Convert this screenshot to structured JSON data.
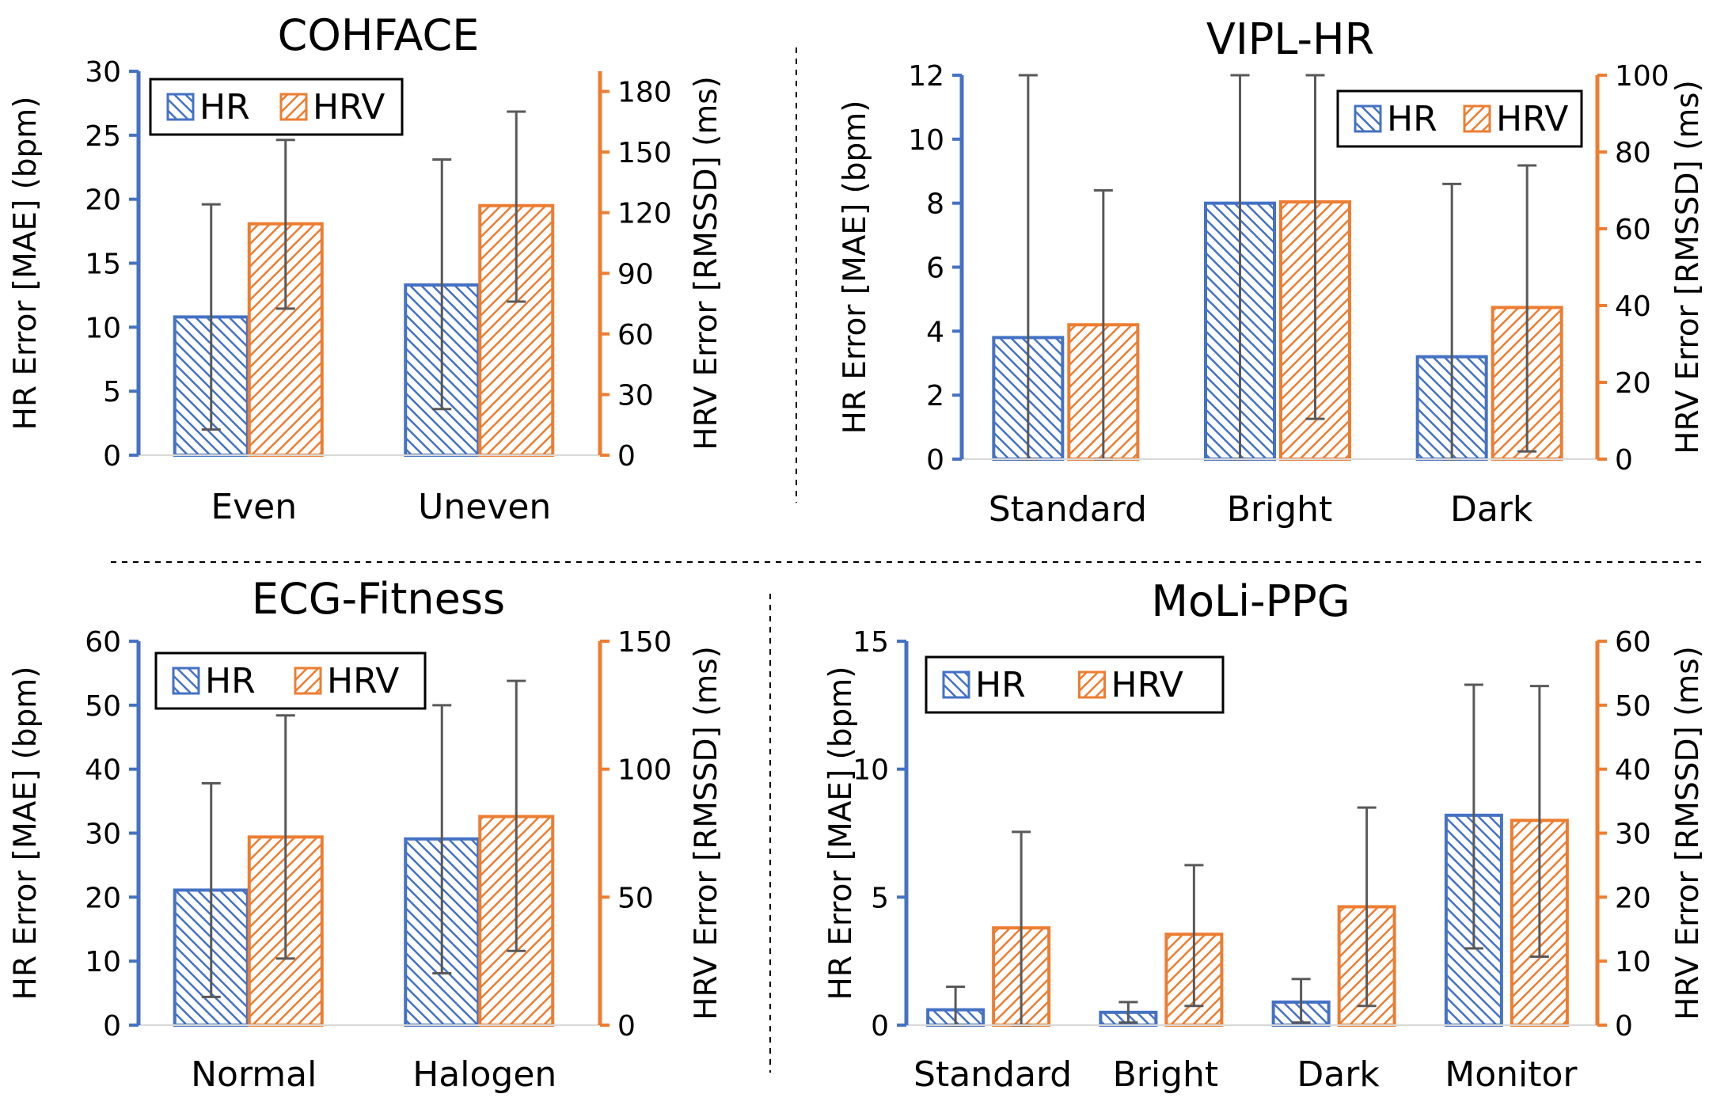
{
  "colors": {
    "hr": "#4472C4",
    "hrv": "#ED7D31",
    "whisker": "#595959",
    "divider": "#000000"
  },
  "legend": {
    "hr": "HR",
    "hrv": "HRV"
  },
  "chart_data": [
    {
      "type": "bar",
      "title": "COHFACE",
      "categories": [
        "Even",
        "Uneven"
      ],
      "ylabel": "HR Error [MAE] (bpm)",
      "y2label": "HRV Error [RMSSD] (ms)",
      "ylim": [
        0,
        30
      ],
      "yticks": [
        0,
        5,
        10,
        15,
        20,
        25,
        30
      ],
      "y2lim": [
        0,
        190
      ],
      "y2ticks": [
        0,
        30,
        60,
        90,
        120,
        150,
        180
      ],
      "legend_position": "top-left",
      "series": [
        {
          "name": "HR",
          "axis": "left",
          "values": [
            10.8,
            13.3
          ],
          "err_low": [
            2.0,
            3.6
          ],
          "err_high": [
            19.6,
            23.1
          ]
        },
        {
          "name": "HRV",
          "axis": "right",
          "values": [
            114.5,
            123.5
          ],
          "err_low": [
            72.5,
            76.0
          ],
          "err_high": [
            156.0,
            170.0
          ]
        }
      ]
    },
    {
      "type": "bar",
      "title": "VIPL-HR",
      "categories": [
        "Standard",
        "Bright",
        "Dark"
      ],
      "ylabel": "HR Error [MAE] (bpm)",
      "y2label": "HRV Error [RMSSD] (ms)",
      "ylim": [
        0,
        12
      ],
      "yticks": [
        0,
        2,
        4,
        6,
        8,
        10,
        12
      ],
      "y2lim": [
        0,
        100
      ],
      "y2ticks": [
        0,
        20,
        40,
        60,
        80,
        100
      ],
      "legend_position": "top-right",
      "series": [
        {
          "name": "HR",
          "axis": "left",
          "values": [
            3.8,
            8.0,
            3.2
          ],
          "err_low": [
            0,
            0,
            0
          ],
          "err_high": [
            12,
            12,
            8.6
          ]
        },
        {
          "name": "HRV",
          "axis": "right",
          "values": [
            35.0,
            67.0,
            39.5
          ],
          "err_low": [
            0,
            10.5,
            2.0
          ],
          "err_high": [
            70.0,
            100,
            76.5
          ]
        }
      ]
    },
    {
      "type": "bar",
      "title": "ECG-Fitness",
      "categories": [
        "Normal",
        "Halogen"
      ],
      "ylabel": "HR Error [MAE] (bpm)",
      "y2label": "HRV Error [RMSSD] (ms)",
      "ylim": [
        0,
        60
      ],
      "yticks": [
        0,
        10,
        20,
        30,
        40,
        50,
        60
      ],
      "y2lim": [
        0,
        150
      ],
      "y2ticks": [
        0,
        50,
        100,
        150
      ],
      "legend_position": "top-left",
      "series": [
        {
          "name": "HR",
          "axis": "left",
          "values": [
            21.1,
            29.1
          ],
          "err_low": [
            4.4,
            8.1
          ],
          "err_high": [
            37.8,
            50.0
          ]
        },
        {
          "name": "HRV",
          "axis": "right",
          "values": [
            73.5,
            81.5
          ],
          "err_low": [
            26.0,
            29.0
          ],
          "err_high": [
            121.0,
            134.5
          ]
        }
      ]
    },
    {
      "type": "bar",
      "title": "MoLi-PPG",
      "categories": [
        "Standard",
        "Bright",
        "Dark",
        "Monitor"
      ],
      "ylabel": "HR Error [MAE] (bpm)",
      "y2label": "HRV Error [RMSSD] (ms)",
      "ylim": [
        0,
        15
      ],
      "yticks": [
        0,
        5,
        10,
        15
      ],
      "y2lim": [
        0,
        60
      ],
      "y2ticks": [
        0,
        10,
        20,
        30,
        40,
        50,
        60
      ],
      "legend_position": "top-left",
      "series": [
        {
          "name": "HR",
          "axis": "left",
          "values": [
            0.6,
            0.5,
            0.9,
            8.2
          ],
          "err_low": [
            0,
            0.1,
            0.1,
            3.0
          ],
          "err_high": [
            1.5,
            0.9,
            1.8,
            13.3
          ]
        },
        {
          "name": "HRV",
          "axis": "right",
          "values": [
            15.2,
            14.2,
            18.5,
            32.0
          ],
          "err_low": [
            0,
            3.0,
            3.0,
            10.7
          ],
          "err_high": [
            30.2,
            25.0,
            34.0,
            53.0
          ]
        }
      ]
    }
  ]
}
